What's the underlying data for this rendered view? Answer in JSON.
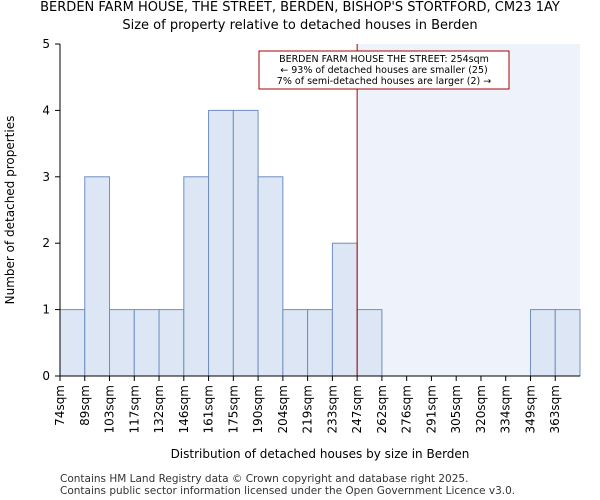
{
  "page": {
    "title_line1": "BERDEN FARM HOUSE, THE STREET, BERDEN, BISHOP'S STORTFORD, CM23 1AY",
    "title_line2": "Size of property relative to detached houses in Berden",
    "footer_line1": "Contains HM Land Registry data © Crown copyright and database right 2025.",
    "footer_line2": "Contains public sector information licensed under the Open Government Licence v3.0."
  },
  "chart_data": {
    "type": "bar",
    "title": "Size of property relative to detached houses in Berden",
    "xlabel": "Distribution of detached houses by size in Berden",
    "ylabel": "Number of detached properties",
    "categories": [
      "74sqm",
      "89sqm",
      "103sqm",
      "117sqm",
      "132sqm",
      "146sqm",
      "161sqm",
      "175sqm",
      "190sqm",
      "204sqm",
      "219sqm",
      "233sqm",
      "247sqm",
      "262sqm",
      "276sqm",
      "291sqm",
      "305sqm",
      "320sqm",
      "334sqm",
      "349sqm",
      "363sqm"
    ],
    "values": [
      1,
      3,
      1,
      1,
      1,
      3,
      4,
      4,
      3,
      1,
      1,
      2,
      1,
      0,
      0,
      0,
      0,
      0,
      0,
      1,
      1
    ],
    "ylim": [
      0,
      5
    ],
    "yticks": [
      0,
      1,
      2,
      3,
      4,
      5
    ],
    "grid": false,
    "subject_value": 254,
    "subject_unit": "sqm",
    "annotation": {
      "line1": "BERDEN FARM HOUSE THE STREET: 254sqm",
      "line2": "← 93% of detached houses are smaller (25)",
      "line3": "7% of semi-detached houses are larger (2) →"
    },
    "colors": {
      "bar_fill": "#dce6f5",
      "bar_edge": "#6f8fbf",
      "highlight_bg": "#eef2fb",
      "subject_line": "#aa0000",
      "axis": "#000000"
    }
  }
}
